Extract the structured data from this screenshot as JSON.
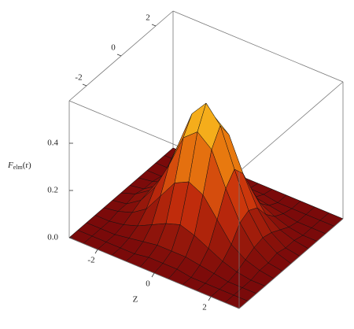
{
  "chart_data": {
    "type": "surface",
    "xlabel": "Z",
    "zlabel": "F",
    "zlabel_sub": "elm",
    "zlabel_suffix": "(r)",
    "x": [
      -3,
      -2.5,
      -2,
      -1.5,
      -1,
      -0.5,
      0,
      0.5,
      1,
      1.5,
      2,
      2.5,
      3
    ],
    "y": [
      -3,
      -2.5,
      -2,
      -1.5,
      -1,
      -0.5,
      0,
      0.5,
      1,
      1.5,
      2,
      2.5,
      3
    ],
    "z": [
      [
        0,
        0,
        0,
        0,
        0,
        0,
        0,
        0,
        0,
        0,
        0,
        0,
        0
      ],
      [
        0,
        0,
        0,
        0,
        0,
        0.01,
        0.01,
        0.01,
        0,
        0,
        0,
        0,
        0
      ],
      [
        0,
        0,
        0,
        0.01,
        0.02,
        0.03,
        0.03,
        0.03,
        0.02,
        0.01,
        0,
        0,
        0
      ],
      [
        0,
        0,
        0.01,
        0.03,
        0.06,
        0.09,
        0.11,
        0.09,
        0.06,
        0.03,
        0.01,
        0,
        0
      ],
      [
        0,
        0.01,
        0.03,
        0.07,
        0.15,
        0.23,
        0.26,
        0.23,
        0.15,
        0.07,
        0.03,
        0.01,
        0
      ],
      [
        0,
        0.01,
        0.05,
        0.13,
        0.25,
        0.39,
        0.44,
        0.39,
        0.25,
        0.13,
        0.05,
        0.01,
        0
      ],
      [
        0,
        0.02,
        0.06,
        0.15,
        0.3,
        0.46,
        0.53,
        0.46,
        0.3,
        0.15,
        0.06,
        0.02,
        0
      ],
      [
        0,
        0.01,
        0.05,
        0.13,
        0.25,
        0.39,
        0.44,
        0.39,
        0.25,
        0.13,
        0.05,
        0.01,
        0
      ],
      [
        0,
        0.01,
        0.03,
        0.07,
        0.15,
        0.23,
        0.26,
        0.23,
        0.15,
        0.07,
        0.03,
        0.01,
        0
      ],
      [
        0,
        0,
        0.01,
        0.03,
        0.06,
        0.09,
        0.11,
        0.09,
        0.06,
        0.03,
        0.01,
        0,
        0
      ],
      [
        0,
        0,
        0,
        0.01,
        0.02,
        0.03,
        0.03,
        0.03,
        0.02,
        0.01,
        0,
        0,
        0
      ],
      [
        0,
        0,
        0,
        0,
        0,
        0.01,
        0.01,
        0.01,
        0,
        0,
        0,
        0,
        0
      ],
      [
        0,
        0,
        0,
        0,
        0,
        0,
        0,
        0,
        0,
        0,
        0,
        0,
        0
      ]
    ],
    "xlim": [
      -3,
      3
    ],
    "ylim": [
      -3,
      3
    ],
    "zlim": [
      0,
      0.58
    ],
    "xticks": [
      -2,
      0,
      2
    ],
    "yticks": [
      -2,
      0,
      2
    ],
    "zticks": [
      {
        "value": 0,
        "label": "0.0"
      },
      0.2,
      0.4
    ],
    "colors": [
      "#7a0a0a",
      "#c8300c",
      "#f08a10",
      "#ffee30"
    ],
    "edge_color": "#111111"
  }
}
